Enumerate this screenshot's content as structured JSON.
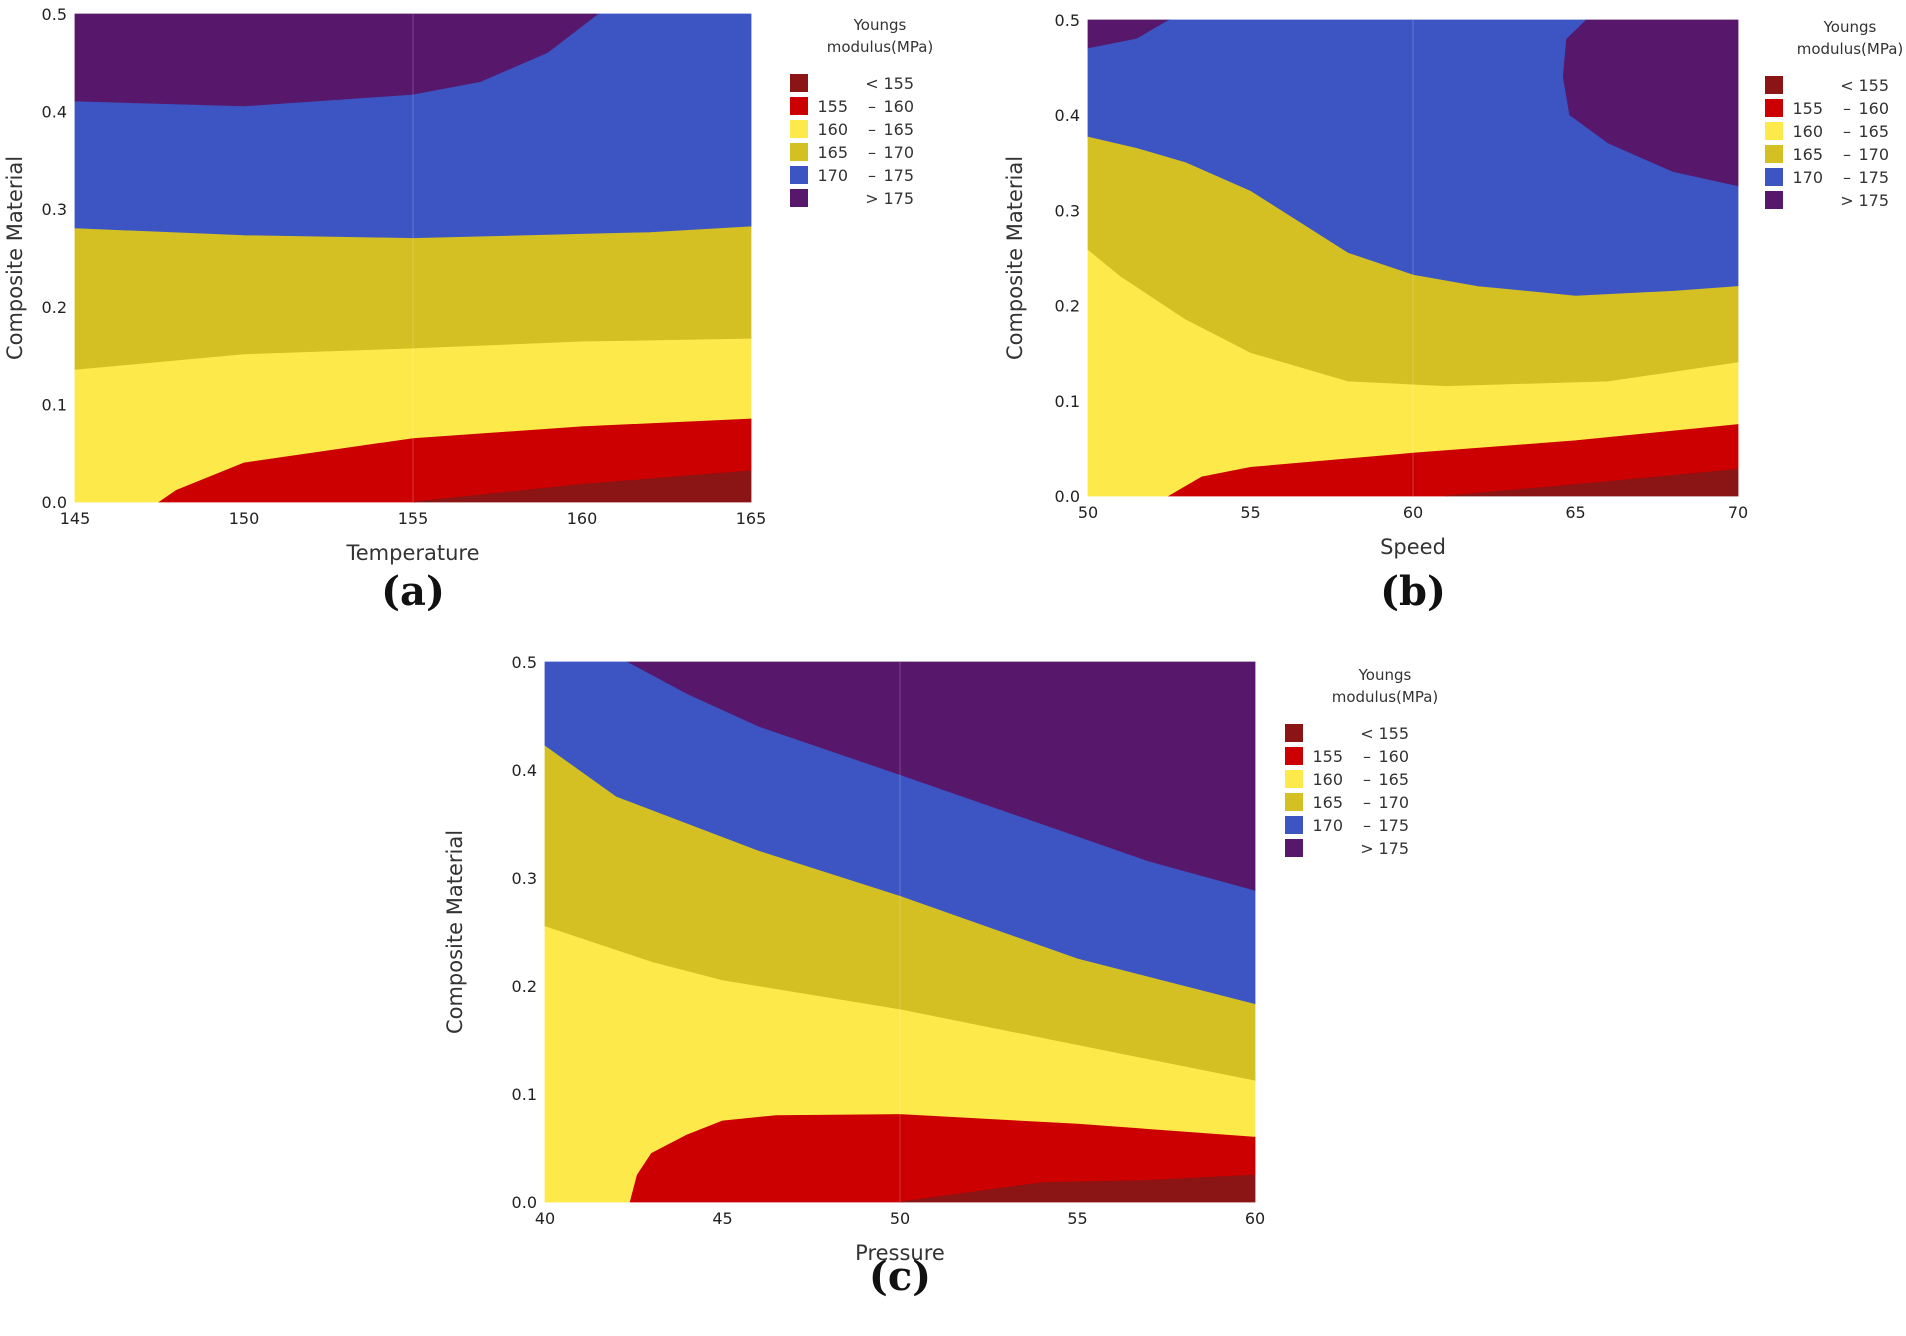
{
  "legend": {
    "title_line1": "Youngs",
    "title_line2": "modulus(MPa)",
    "items": [
      {
        "low": "",
        "sep": "<",
        "high": "155",
        "color": "#8b1414"
      },
      {
        "low": "155",
        "sep": "–",
        "high": "160",
        "color": "#cc0000"
      },
      {
        "low": "160",
        "sep": "–",
        "high": "165",
        "color": "#fdea4a"
      },
      {
        "low": "165",
        "sep": "–",
        "high": "170",
        "color": "#d4c023"
      },
      {
        "low": "170",
        "sep": "–",
        "high": "175",
        "color": "#3c55c3"
      },
      {
        "low": "",
        "sep": ">",
        "high": "175",
        "color": "#57176b"
      }
    ]
  },
  "chart_data": [
    {
      "type": "contour",
      "caption": "(a)",
      "xlabel": "Temperature",
      "ylabel": "Composite Material",
      "xlim": [
        145,
        165
      ],
      "ylim": [
        0.0,
        0.5
      ],
      "xticks": [
        "145",
        "150",
        "155",
        "160",
        "165"
      ],
      "yticks": [
        "0.0",
        "0.1",
        "0.2",
        "0.3",
        "0.4",
        "0.5"
      ],
      "regions": [
        {
          "level": "> 175",
          "color": "#57176b",
          "points": [
            [
              145,
              0.5
            ],
            [
              145,
              0.41
            ],
            [
              150,
              0.405
            ],
            [
              155,
              0.417
            ],
            [
              157,
              0.43
            ],
            [
              159,
              0.46
            ],
            [
              160.5,
              0.5
            ]
          ]
        },
        {
          "level": "170 – 175",
          "color": "#3c55c3",
          "points": [
            [
              145,
              0.41
            ],
            [
              150,
              0.405
            ],
            [
              155,
              0.417
            ],
            [
              157,
              0.43
            ],
            [
              159,
              0.46
            ],
            [
              160.5,
              0.5
            ],
            [
              165,
              0.5
            ],
            [
              165,
              0.282
            ],
            [
              162,
              0.276
            ],
            [
              155,
              0.27
            ],
            [
              150,
              0.273
            ],
            [
              145,
              0.28
            ]
          ]
        },
        {
          "level": "165 – 170",
          "color": "#d4c023",
          "points": [
            [
              145,
              0.28
            ],
            [
              150,
              0.273
            ],
            [
              155,
              0.27
            ],
            [
              162,
              0.276
            ],
            [
              165,
              0.282
            ],
            [
              165,
              0.167
            ],
            [
              160,
              0.164
            ],
            [
              155,
              0.157
            ],
            [
              150,
              0.151
            ],
            [
              145,
              0.135
            ]
          ]
        },
        {
          "level": "160 – 165",
          "color": "#fdea4a",
          "points": [
            [
              145,
              0.135
            ],
            [
              150,
              0.151
            ],
            [
              155,
              0.157
            ],
            [
              160,
              0.164
            ],
            [
              165,
              0.167
            ],
            [
              165,
              0.085
            ],
            [
              160,
              0.077
            ],
            [
              155,
              0.065
            ],
            [
              150,
              0.04
            ],
            [
              148,
              0.012
            ],
            [
              147.5,
              0
            ],
            [
              145,
              0
            ]
          ]
        },
        {
          "level": "155 – 160",
          "color": "#cc0000",
          "points": [
            [
              147.5,
              0
            ],
            [
              148,
              0.012
            ],
            [
              150,
              0.04
            ],
            [
              155,
              0.065
            ],
            [
              160,
              0.077
            ],
            [
              165,
              0.085
            ],
            [
              165,
              0.032
            ],
            [
              160,
              0.018
            ],
            [
              155,
              0
            ]
          ]
        },
        {
          "level": "< 155",
          "color": "#8b1414",
          "points": [
            [
              155,
              0
            ],
            [
              160,
              0.018
            ],
            [
              165,
              0.032
            ],
            [
              165,
              0
            ]
          ]
        }
      ]
    },
    {
      "type": "contour",
      "caption": "(b)",
      "xlabel": "Speed",
      "ylabel": "Composite Material",
      "xlim": [
        50,
        70
      ],
      "ylim": [
        0.0,
        0.5
      ],
      "xticks": [
        "50",
        "55",
        "60",
        "65",
        "70"
      ],
      "yticks": [
        "0.0",
        "0.1",
        "0.2",
        "0.3",
        "0.4",
        "0.5"
      ],
      "regions": [
        {
          "level": "> 175",
          "color": "#57176b",
          "points": [
            [
              50,
              0.5
            ],
            [
              50,
              0.47
            ],
            [
              51.5,
              0.48
            ],
            [
              52.5,
              0.5
            ]
          ]
        },
        {
          "level": "> 175",
          "color": "#57176b",
          "points": [
            [
              65.3,
              0.5
            ],
            [
              64.7,
              0.48
            ],
            [
              64.6,
              0.44
            ],
            [
              64.8,
              0.4
            ],
            [
              66,
              0.37
            ],
            [
              68,
              0.34
            ],
            [
              70,
              0.325
            ],
            [
              70,
              0.5
            ]
          ]
        },
        {
          "level": "170 – 175",
          "color": "#3c55c3",
          "points": [
            [
              50,
              0.47
            ],
            [
              51.5,
              0.48
            ],
            [
              52.5,
              0.5
            ],
            [
              65.3,
              0.5
            ],
            [
              64.7,
              0.48
            ],
            [
              64.6,
              0.44
            ],
            [
              64.8,
              0.4
            ],
            [
              66,
              0.37
            ],
            [
              68,
              0.34
            ],
            [
              70,
              0.325
            ],
            [
              70,
              0.22
            ],
            [
              68,
              0.215
            ],
            [
              65,
              0.21
            ],
            [
              62,
              0.22
            ],
            [
              60,
              0.232
            ],
            [
              58,
              0.255
            ],
            [
              55,
              0.32
            ],
            [
              53,
              0.35
            ],
            [
              51.5,
              0.365
            ],
            [
              50,
              0.377
            ]
          ]
        },
        {
          "level": "165 – 170",
          "color": "#d4c023",
          "points": [
            [
              50,
              0.377
            ],
            [
              51.5,
              0.365
            ],
            [
              53,
              0.35
            ],
            [
              55,
              0.32
            ],
            [
              58,
              0.255
            ],
            [
              60,
              0.232
            ],
            [
              62,
              0.22
            ],
            [
              65,
              0.21
            ],
            [
              68,
              0.215
            ],
            [
              70,
              0.22
            ],
            [
              70,
              0.14
            ],
            [
              66,
              0.12
            ],
            [
              61,
              0.115
            ],
            [
              58,
              0.12
            ],
            [
              55,
              0.15
            ],
            [
              53,
              0.185
            ],
            [
              51,
              0.23
            ],
            [
              50,
              0.258
            ]
          ]
        },
        {
          "level": "160 – 165",
          "color": "#fdea4a",
          "points": [
            [
              50,
              0.258
            ],
            [
              51,
              0.23
            ],
            [
              53,
              0.185
            ],
            [
              55,
              0.15
            ],
            [
              58,
              0.12
            ],
            [
              61,
              0.115
            ],
            [
              66,
              0.12
            ],
            [
              70,
              0.14
            ],
            [
              70,
              0.075
            ],
            [
              65,
              0.058
            ],
            [
              60,
              0.045
            ],
            [
              55,
              0.03
            ],
            [
              53.5,
              0.02
            ],
            [
              52.5,
              0
            ],
            [
              50,
              0
            ]
          ]
        },
        {
          "level": "155 – 160",
          "color": "#cc0000",
          "points": [
            [
              52.5,
              0
            ],
            [
              53,
              0.01
            ],
            [
              53.5,
              0.02
            ],
            [
              55,
              0.03
            ],
            [
              60,
              0.045
            ],
            [
              65,
              0.058
            ],
            [
              70,
              0.075
            ],
            [
              70,
              0.028
            ],
            [
              65,
              0.012
            ],
            [
              61,
              0
            ]
          ]
        },
        {
          "level": "< 155",
          "color": "#8b1414",
          "points": [
            [
              61,
              0
            ],
            [
              65,
              0.012
            ],
            [
              70,
              0.028
            ],
            [
              70,
              0
            ]
          ]
        }
      ]
    },
    {
      "type": "contour",
      "caption": "(c)",
      "xlabel": "Pressure",
      "ylabel": "Composite Material",
      "xlim": [
        40,
        60
      ],
      "ylim": [
        0.0,
        0.5
      ],
      "xticks": [
        "40",
        "45",
        "50",
        "55",
        "60"
      ],
      "yticks": [
        "0.0",
        "0.1",
        "0.2",
        "0.3",
        "0.4",
        "0.5"
      ],
      "regions": [
        {
          "level": "> 175",
          "color": "#57176b",
          "points": [
            [
              42.3,
              0.5
            ],
            [
              44,
              0.47
            ],
            [
              46,
              0.44
            ],
            [
              50,
              0.395
            ],
            [
              55,
              0.338
            ],
            [
              57,
              0.315
            ],
            [
              60,
              0.288
            ],
            [
              60,
              0.5
            ]
          ]
        },
        {
          "level": "170 – 175",
          "color": "#3c55c3",
          "points": [
            [
              40,
              0.5
            ],
            [
              40,
              0.422
            ],
            [
              42,
              0.375
            ],
            [
              44,
              0.35
            ],
            [
              46,
              0.325
            ],
            [
              50,
              0.283
            ],
            [
              55,
              0.225
            ],
            [
              60,
              0.183
            ],
            [
              60,
              0.288
            ],
            [
              57,
              0.315
            ],
            [
              55,
              0.338
            ],
            [
              50,
              0.395
            ],
            [
              46,
              0.44
            ],
            [
              44,
              0.47
            ],
            [
              42.3,
              0.5
            ]
          ]
        },
        {
          "level": "165 – 170",
          "color": "#d4c023",
          "points": [
            [
              40,
              0.422
            ],
            [
              42,
              0.375
            ],
            [
              44,
              0.35
            ],
            [
              46,
              0.325
            ],
            [
              50,
              0.283
            ],
            [
              55,
              0.225
            ],
            [
              60,
              0.183
            ],
            [
              60,
              0.112
            ],
            [
              55,
              0.145
            ],
            [
              50,
              0.178
            ],
            [
              45,
              0.205
            ],
            [
              43,
              0.222
            ],
            [
              40,
              0.255
            ]
          ]
        },
        {
          "level": "160 – 165",
          "color": "#fdea4a",
          "points": [
            [
              40,
              0.255
            ],
            [
              43,
              0.222
            ],
            [
              45,
              0.205
            ],
            [
              50,
              0.178
            ],
            [
              55,
              0.145
            ],
            [
              60,
              0.112
            ],
            [
              60,
              0.06
            ],
            [
              55,
              0.072
            ],
            [
              50,
              0.081
            ],
            [
              46.5,
              0.08
            ],
            [
              45,
              0.075
            ],
            [
              44,
              0.062
            ],
            [
              43,
              0.045
            ],
            [
              42.6,
              0.025
            ],
            [
              42.4,
              0
            ],
            [
              40,
              0
            ]
          ]
        },
        {
          "level": "155 – 160",
          "color": "#cc0000",
          "points": [
            [
              42.4,
              0
            ],
            [
              42.6,
              0.025
            ],
            [
              43,
              0.045
            ],
            [
              44,
              0.062
            ],
            [
              45,
              0.075
            ],
            [
              46.5,
              0.08
            ],
            [
              50,
              0.081
            ],
            [
              55,
              0.072
            ],
            [
              60,
              0.06
            ],
            [
              60,
              0.025
            ],
            [
              57,
              0.02
            ],
            [
              54,
              0.018
            ],
            [
              50,
              0
            ]
          ]
        },
        {
          "level": "< 155",
          "color": "#8b1414",
          "points": [
            [
              50,
              0
            ],
            [
              54,
              0.018
            ],
            [
              57,
              0.02
            ],
            [
              60,
              0.025
            ],
            [
              60,
              0
            ]
          ]
        }
      ]
    }
  ]
}
